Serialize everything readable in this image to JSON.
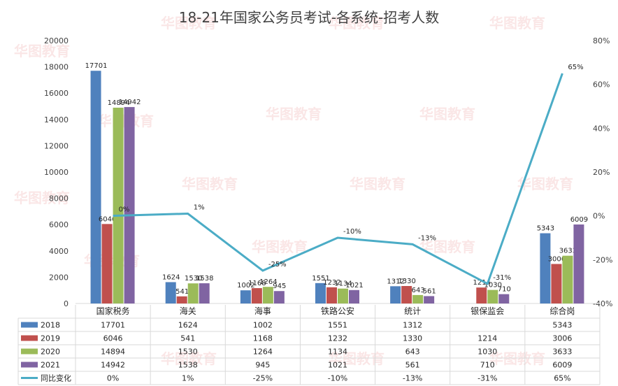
{
  "chart_data": {
    "type": "bar",
    "title": "18-21年国家公务员考试-各系统-招考人数",
    "categories": [
      "国家税务",
      "海关",
      "海事",
      "铁路公安",
      "统计",
      "银保监会",
      "综合岗"
    ],
    "series": [
      {
        "name": "2018",
        "color": "#4f81bd",
        "values": [
          17701,
          1624,
          1002,
          1551,
          1312,
          null,
          5343
        ]
      },
      {
        "name": "2019",
        "color": "#c0504d",
        "values": [
          6046,
          541,
          1168,
          1232,
          1330,
          1214,
          3006
        ]
      },
      {
        "name": "2020",
        "color": "#9bbb59",
        "values": [
          14894,
          1530,
          1264,
          1134,
          643,
          1030,
          3633
        ]
      },
      {
        "name": "2021",
        "color": "#8064a2",
        "values": [
          14942,
          1538,
          945,
          1021,
          561,
          710,
          6009
        ]
      }
    ],
    "line_series": {
      "name": "同比变化",
      "color": "#4bacc6",
      "values": [
        0,
        1,
        -25,
        -10,
        -13,
        -31,
        65
      ],
      "labels": [
        "0%",
        "1%",
        "-25%",
        "-10%",
        "-13%",
        "-31%",
        "65%"
      ]
    },
    "ylim": [
      0,
      20000
    ],
    "yticks": [
      "0",
      "2000",
      "4000",
      "6000",
      "8000",
      "10000",
      "12000",
      "14000",
      "16000",
      "18000",
      "20000"
    ],
    "y2lim": [
      -40,
      80
    ],
    "y2ticks": [
      "-40%",
      "-20%",
      "0%",
      "20%",
      "40%",
      "60%",
      "80%"
    ],
    "data_table": true,
    "watermark": "华图教育"
  }
}
